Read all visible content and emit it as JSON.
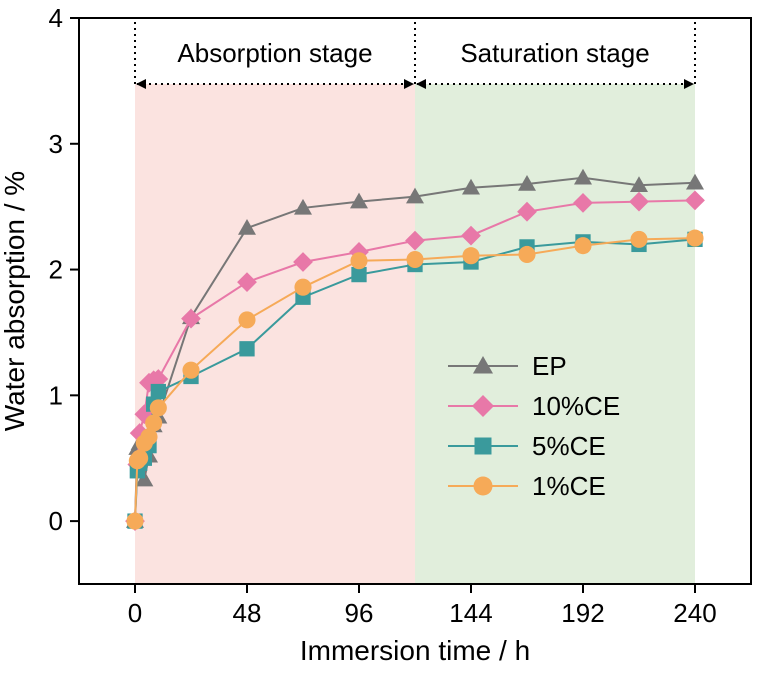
{
  "chart_data": {
    "type": "line",
    "xlabel": "Immersion time / h",
    "ylabel": "Water absorption / %",
    "xlim": [
      -24,
      264
    ],
    "ylim": [
      -0.5,
      4
    ],
    "xticks": [
      0,
      48,
      96,
      144,
      192,
      240
    ],
    "yticks": [
      0,
      1,
      2,
      3,
      4
    ],
    "grid": false,
    "legend_position": "center-right",
    "regions": [
      {
        "label": "Absorption stage",
        "x_start": 0,
        "x_end": 120,
        "color": "#fbe3e0"
      },
      {
        "label": "Saturation stage",
        "x_start": 120,
        "x_end": 240,
        "color": "#e1eedc"
      }
    ],
    "series": [
      {
        "name": "EP",
        "marker": "triangle",
        "color": "#777777",
        "x": [
          0,
          1,
          2,
          4,
          6,
          8,
          10,
          24,
          48,
          72,
          96,
          120,
          144,
          168,
          192,
          216,
          240
        ],
        "y": [
          0,
          0.58,
          0.62,
          0.33,
          0.52,
          0.76,
          0.83,
          1.62,
          2.33,
          2.49,
          2.54,
          2.58,
          2.65,
          2.68,
          2.73,
          2.67,
          2.69
        ]
      },
      {
        "name": "10%CE",
        "marker": "diamond",
        "color": "#e878a8",
        "x": [
          0,
          1,
          2,
          4,
          6,
          8,
          10,
          24,
          48,
          72,
          96,
          120,
          144,
          168,
          192,
          216,
          240
        ],
        "y": [
          0,
          0.45,
          0.7,
          0.85,
          1.1,
          1.12,
          1.13,
          1.61,
          1.9,
          2.06,
          2.14,
          2.23,
          2.27,
          2.46,
          2.53,
          2.54,
          2.55
        ]
      },
      {
        "name": "5%CE",
        "marker": "square",
        "color": "#3a9a9c",
        "x": [
          0,
          1,
          2,
          4,
          6,
          8,
          10,
          24,
          48,
          72,
          96,
          120,
          144,
          168,
          192,
          216,
          240
        ],
        "y": [
          0,
          0.4,
          0.46,
          0.5,
          0.6,
          0.93,
          1.03,
          1.15,
          1.37,
          1.78,
          1.96,
          2.04,
          2.06,
          2.18,
          2.22,
          2.2,
          2.24
        ]
      },
      {
        "name": "1%CE",
        "marker": "circle",
        "color": "#f6aa58",
        "x": [
          0,
          1,
          2,
          4,
          6,
          8,
          10,
          24,
          48,
          72,
          96,
          120,
          144,
          168,
          192,
          216,
          240
        ],
        "y": [
          0,
          0.48,
          0.5,
          0.62,
          0.67,
          0.78,
          0.9,
          1.2,
          1.6,
          1.86,
          2.07,
          2.08,
          2.11,
          2.12,
          2.19,
          2.24,
          2.25
        ]
      }
    ]
  }
}
